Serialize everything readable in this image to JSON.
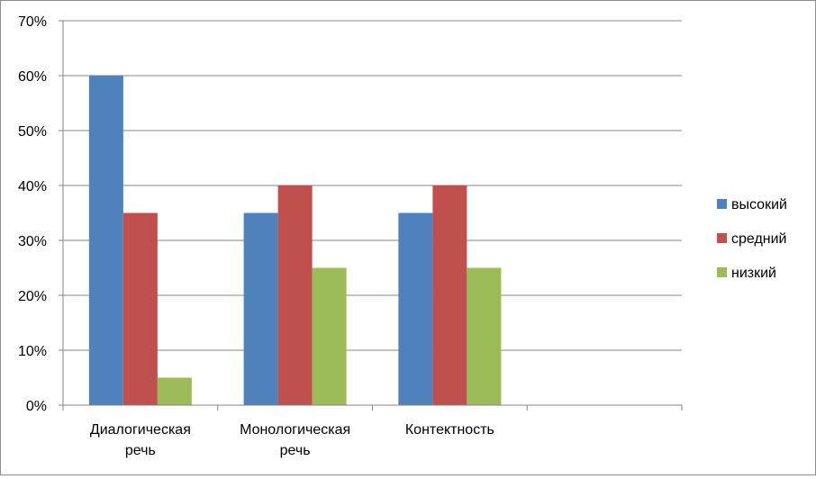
{
  "chart_data": {
    "type": "bar",
    "categories": [
      [
        "Диалогическая",
        "речь"
      ],
      [
        "Монологическая",
        "речь"
      ],
      [
        "Контектность"
      ],
      [
        ""
      ]
    ],
    "series": [
      {
        "name": "высокий",
        "values": [
          60,
          35,
          35,
          null
        ],
        "color": "#4f81bd"
      },
      {
        "name": "средний",
        "values": [
          35,
          40,
          40,
          null
        ],
        "color": "#c0504d"
      },
      {
        "name": "низкий",
        "values": [
          5,
          25,
          25,
          null
        ],
        "color": "#9bbb59"
      }
    ],
    "y_ticks": [
      "0%",
      "10%",
      "20%",
      "30%",
      "40%",
      "50%",
      "60%",
      "70%"
    ],
    "ylim": [
      0,
      70
    ],
    "y_unit": "%",
    "grid": true,
    "legend_position": "right"
  }
}
